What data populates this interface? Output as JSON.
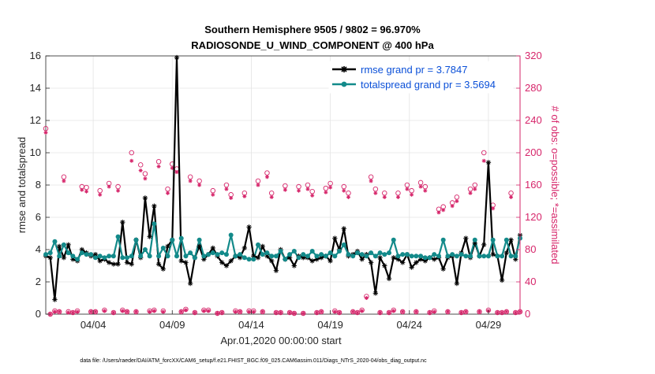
{
  "chart_data": {
    "type": "line",
    "title": "Southern Hemisphere 9505 / 9802 = 96.970%",
    "subtitle": "RADIOSONDE_U_WIND_COMPONENT @ 400 hPa",
    "xlabel": "Apr.01,2020 00:00:00 start",
    "ylabel": "rmse and totalspread",
    "ylabel_right": "# of obs: o=possible; *=assimilated",
    "x_tick_labels": [
      "04/04",
      "04/09",
      "04/14",
      "04/19",
      "04/24",
      "04/29"
    ],
    "x_tick_days": [
      4,
      9,
      14,
      19,
      24,
      29
    ],
    "xlim": [
      1,
      31
    ],
    "ylim": [
      0,
      16
    ],
    "y_ticks": [
      "0",
      "2",
      "4",
      "6",
      "8",
      "10",
      "12",
      "14",
      "16"
    ],
    "ylim_right": [
      0,
      320
    ],
    "y_ticks_right": [
      "0",
      "40",
      "80",
      "120",
      "160",
      "200",
      "240",
      "280",
      "320"
    ],
    "legend_position": "top-right",
    "footer": "data file: /Users/raeder/DAI/ATM_forcXX/CAM6_setup/f.e21.FHIST_BGC.f09_025.CAM6assim.011/Diags_NTrS_2020-04/obs_diag_output.nc",
    "series": [
      {
        "name": "rmse grand pr = 3.7847",
        "color": "#000000",
        "values": [
          3.6,
          3.5,
          0.9,
          4.2,
          3.5,
          4.3,
          3.4,
          3.3,
          4.0,
          3.8,
          3.6,
          3.7,
          3.3,
          3.4,
          3.2,
          3.1,
          3.1,
          5.7,
          3.2,
          3.1,
          4.6,
          3.5,
          7.2,
          4.8,
          6.7,
          3.1,
          2.8,
          4.2,
          4.6,
          15.9,
          3.3,
          3.2,
          1.9,
          3.5,
          4.2,
          3.4,
          3.7,
          4.1,
          3.6,
          3.2,
          3.0,
          3.3,
          3.6,
          3.5,
          4.1,
          5.4,
          3.6,
          3.5,
          4.2,
          3.6,
          3.3,
          2.7,
          4.0,
          3.4,
          3.5,
          3.0,
          3.6,
          3.5,
          3.5,
          3.3,
          3.4,
          3.5,
          3.6,
          3.3,
          4.7,
          4.0,
          5.3,
          3.6,
          3.7,
          3.9,
          3.4,
          3.7,
          3.2,
          1.3,
          3.5,
          3.0,
          2.2,
          3.5,
          3.4,
          3.2,
          3.7,
          2.9,
          3.2,
          3.4,
          3.3,
          3.5,
          3.4,
          3.5,
          2.8,
          3.5,
          3.6,
          1.9,
          3.8,
          4.7,
          3.5,
          4.4,
          3.6,
          4.3,
          9.4,
          3.7,
          3.6,
          2.1,
          3.8,
          4.6,
          3.4,
          4.9
        ]
      },
      {
        "name": "totalspread grand pr = 3.5694",
        "color": "#138a8a",
        "values": [
          3.7,
          3.8,
          4.5,
          3.6,
          4.3,
          3.8,
          3.6,
          3.4,
          3.8,
          3.7,
          3.7,
          3.5,
          3.6,
          3.5,
          3.6,
          3.6,
          4.8,
          3.5,
          3.5,
          3.6,
          4.6,
          3.6,
          4.0,
          3.6,
          5.6,
          3.6,
          4.1,
          3.6,
          4.6,
          3.6,
          4.7,
          3.6,
          3.8,
          3.5,
          4.6,
          3.6,
          3.7,
          3.8,
          3.7,
          3.8,
          3.7,
          4.9,
          3.6,
          3.7,
          3.5,
          3.4,
          3.4,
          4.3,
          3.7,
          3.8,
          3.6,
          3.6,
          3.9,
          3.4,
          3.7,
          3.9,
          3.5,
          3.7,
          3.6,
          3.9,
          3.6,
          3.7,
          3.6,
          3.8,
          3.6,
          3.9,
          4.3,
          3.7,
          3.6,
          3.8,
          3.7,
          3.6,
          3.8,
          3.6,
          3.8,
          3.7,
          3.8,
          4.6,
          3.6,
          3.7,
          3.7,
          3.6,
          3.6,
          3.6,
          3.5,
          3.5,
          3.7,
          3.6,
          4.6,
          3.6,
          3.7,
          3.6,
          3.7,
          3.6,
          3.6,
          4.6,
          3.6,
          3.6,
          3.6,
          4.6,
          3.6,
          3.6,
          4.6,
          3.6,
          3.6,
          4.7
        ]
      }
    ],
    "obs_possible": [
      230,
      0,
      4,
      3,
      170,
      3,
      2,
      4,
      158,
      157,
      3,
      3,
      153,
      5,
      162,
      2,
      158,
      5,
      3,
      200,
      3,
      185,
      174,
      4,
      5,
      189,
      4,
      155,
      186,
      180,
      3,
      6,
      170,
      2,
      165,
      5,
      5,
      153,
      1,
      2,
      160,
      148,
      4,
      3,
      150,
      4,
      4,
      165,
      3,
      175,
      150,
      2,
      2,
      159,
      2,
      1,
      158,
      1,
      160,
      152,
      2,
      3,
      156,
      162,
      4,
      2,
      158,
      150,
      3,
      2,
      5,
      22,
      170,
      155,
      2,
      150,
      2,
      5,
      150,
      3,
      160,
      153,
      3,
      163,
      158,
      2,
      4,
      130,
      133,
      3,
      138,
      145,
      2,
      3,
      155,
      160,
      3,
      200,
      5,
      135,
      2,
      2,
      3,
      150,
      2,
      3
    ],
    "obs_assimilated": [
      225,
      0,
      3,
      3,
      165,
      2,
      2,
      3,
      154,
      152,
      3,
      3,
      148,
      4,
      158,
      2,
      153,
      4,
      3,
      190,
      3,
      178,
      168,
      3,
      4,
      183,
      3,
      150,
      181,
      176,
      3,
      5,
      165,
      2,
      160,
      4,
      4,
      148,
      1,
      2,
      155,
      144,
      3,
      3,
      146,
      3,
      3,
      160,
      3,
      170,
      145,
      2,
      2,
      154,
      2,
      1,
      153,
      1,
      155,
      147,
      2,
      3,
      151,
      157,
      3,
      2,
      153,
      145,
      3,
      2,
      4,
      20,
      165,
      150,
      2,
      145,
      2,
      4,
      145,
      3,
      155,
      148,
      3,
      158,
      153,
      2,
      3,
      126,
      129,
      3,
      134,
      140,
      2,
      3,
      150,
      155,
      3,
      190,
      4,
      131,
      2,
      2,
      3,
      145,
      2,
      3
    ]
  }
}
